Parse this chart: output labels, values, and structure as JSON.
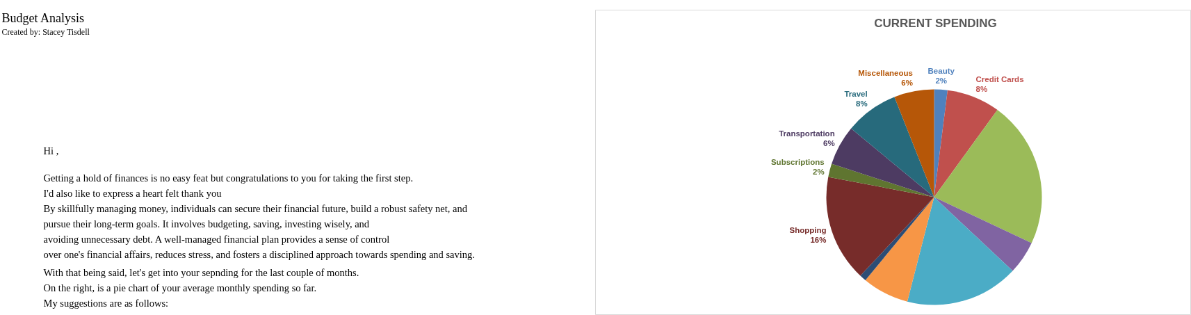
{
  "chart_data": {
    "type": "pie",
    "title": "CURRENT SPENDING",
    "categories": [
      "Beauty",
      "Credit Cards",
      null,
      null,
      null,
      null,
      null,
      "Shopping",
      "Subscriptions",
      "Transportation",
      "Travel",
      "Miscellaneous"
    ],
    "values": [
      2,
      8,
      22,
      5,
      17,
      7,
      1,
      16,
      2,
      6,
      8,
      6
    ],
    "value_labels": [
      "2%",
      "8%",
      null,
      null,
      null,
      null,
      null,
      "16%",
      "2%",
      "6%",
      "8%",
      "6%"
    ],
    "colors": [
      "#4f81bd",
      "#c0504d",
      "#9bbb59",
      "#8064a2",
      "#4bacc6",
      "#f79646",
      "#2c4d75",
      "#772c2a",
      "#5f7530",
      "#4d3b62",
      "#276a7c",
      "#b65708"
    ],
    "annotations": [
      "Budget Analysis",
      "Created by: Stacey Tisdell",
      "Hi ,",
      "Getting a hold of finances is no easy feat but congratulations to you for taking the first step.\nI'd also like to express a heart felt thank you\nBy skillfully managing money, individuals can secure their financial future, build a robust safety net, and\npursue their long-term goals. It involves budgeting, saving, investing wisely, and\navoiding unnecessary debt. A well-managed financial plan provides a sense of control\nover one's financial affairs, reduces stress, and fosters a disciplined approach towards spending and saving.",
      "With that being said, let's get into your sepnding for the last couple of months.\nOn the right, is a pie chart of your average monthly spending so far.\nMy suggestions are as follows:"
    ]
  }
}
